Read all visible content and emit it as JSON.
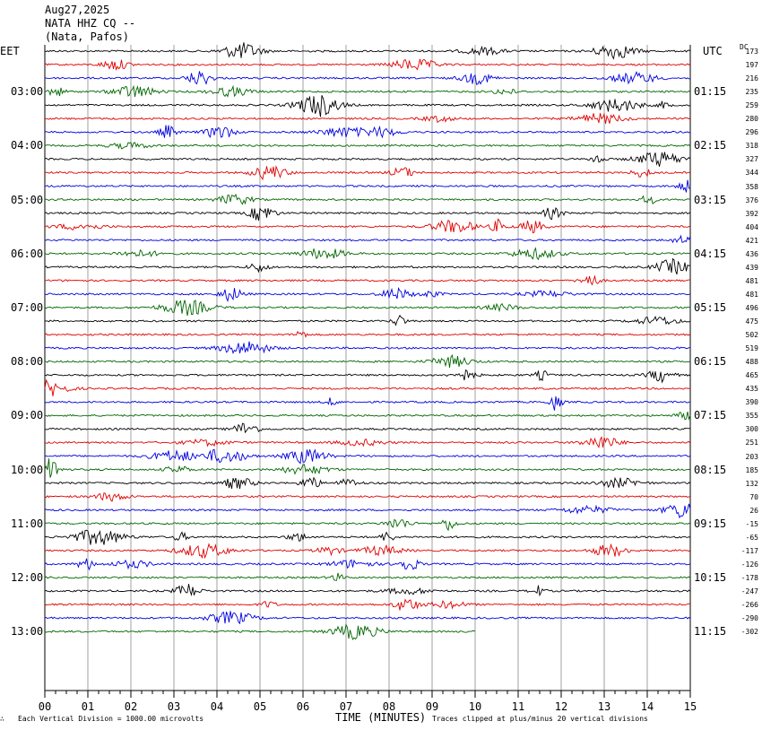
{
  "header": {
    "date": "Aug27,2025",
    "station": "NATA HHZ CQ --",
    "location": "(Nata, Pafos)"
  },
  "left_tz": "EET",
  "right_tz": "UTC",
  "dc_label": "DC",
  "left_hours": [
    "03:00",
    "04:00",
    "05:00",
    "06:00",
    "07:00",
    "08:00",
    "09:00",
    "10:00",
    "11:00",
    "12:00",
    "13:00"
  ],
  "right_hours": [
    "01:15",
    "02:15",
    "03:15",
    "04:15",
    "05:15",
    "06:15",
    "07:15",
    "08:15",
    "09:15",
    "10:15",
    "11:15"
  ],
  "dc_offsets": [
    "173",
    "197",
    "216",
    "235",
    "259",
    "280",
    "296",
    "318",
    "327",
    "344",
    "358",
    "376",
    "392",
    "404",
    "421",
    "436",
    "439",
    "481",
    "481",
    "496",
    "475",
    "502",
    "519",
    "488",
    "465",
    "435",
    "390",
    "355",
    "300",
    "251",
    "203",
    "185",
    "132",
    "70",
    "26",
    "-15",
    "-65",
    "-117",
    "-126",
    "-178",
    "-247",
    "-266",
    "-290",
    "-302"
  ],
  "x_ticks": [
    "00",
    "01",
    "02",
    "03",
    "04",
    "05",
    "06",
    "07",
    "08",
    "09",
    "10",
    "11",
    "12",
    "13",
    "14",
    "15"
  ],
  "xlabel": "TIME (MINUTES)",
  "scale_note": "Each Vertical Division = 1000.00 microvolts",
  "clip_note": "Traces clipped at plus/minus 20 vertical divisions",
  "colors": {
    "cycle": [
      "#000000",
      "#e00000",
      "#0000e0",
      "#006600"
    ],
    "grid": "#888888"
  },
  "chart_data": {
    "type": "line",
    "title": "NATA HHZ CQ --",
    "xlabel": "TIME (MINUTES)",
    "xlim": [
      0,
      15
    ],
    "trace_count": 44,
    "last_trace_end_minute": 10,
    "grid": true
  }
}
